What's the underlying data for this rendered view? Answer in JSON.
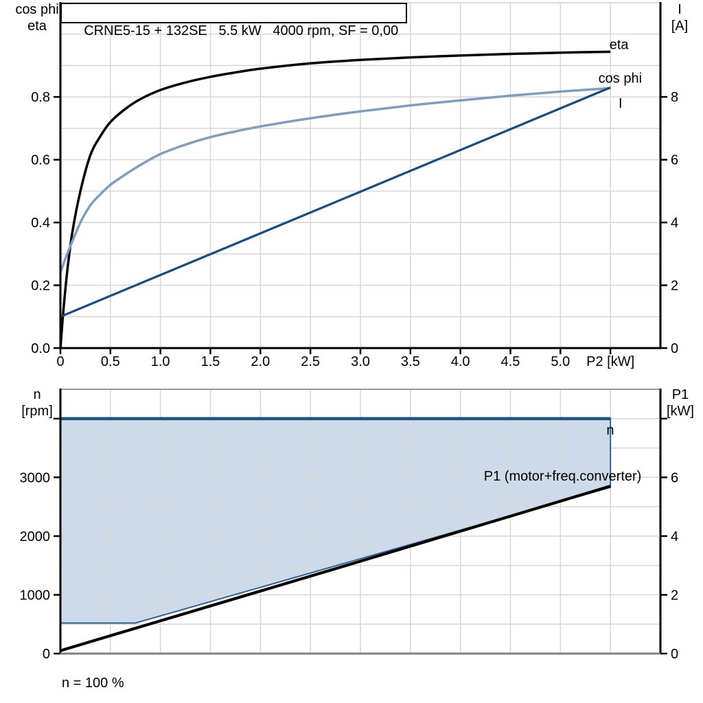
{
  "title_box": {
    "text": "CRNE5-15 + 132SE   5.5 kW   4000 rpm, SF = 0,00"
  },
  "labels": {
    "top_left": {
      "line1": "cos phi",
      "line2": "eta"
    },
    "top_right": {
      "line1": "I",
      "line2": "[A]"
    },
    "bottom_left": {
      "line1": "n",
      "line2": "[rpm]"
    },
    "bottom_right": {
      "line1": "P1",
      "line2": "[kW]"
    },
    "footer_note": "n = 100 %"
  },
  "colors": {
    "grid": "#d9d9d9",
    "axis": "#000000",
    "bottom_chart_top_border": "#9a9a9a",
    "bottom_chart_bottom_axis": "#808080",
    "eta": "#000000",
    "cos_phi": "#7e9dbf",
    "current": "#1b4e80",
    "speed_line": "#1f5480",
    "envelope_fill": "#ccdae9",
    "envelope_stroke": "#2e618f",
    "p1_line": "#000000"
  },
  "chart_data": [
    {
      "type": "line",
      "title": "CRNE5-15 + 132SE   5.5 kW   4000 rpm, SF = 0,00",
      "xlabel": "P2 [kW]",
      "grid": true,
      "x": {
        "min": 0,
        "max": 6,
        "grid_step": 0.5,
        "ticks": [
          {
            "v": 0,
            "label": "0"
          },
          {
            "v": 0.5,
            "label": "0.5"
          },
          {
            "v": 1,
            "label": "1.0"
          },
          {
            "v": 1.5,
            "label": "1.5"
          },
          {
            "v": 2,
            "label": "2.0"
          },
          {
            "v": 2.5,
            "label": "2.5"
          },
          {
            "v": 3,
            "label": "3.0"
          },
          {
            "v": 3.5,
            "label": "3.5"
          },
          {
            "v": 4,
            "label": "4.0"
          },
          {
            "v": 4.5,
            "label": "4.5"
          },
          {
            "v": 5,
            "label": "5.0"
          },
          {
            "v": 5.5,
            "label": "P2 [kW]"
          }
        ]
      },
      "left_axis": {
        "name": "cos phi / eta",
        "min": 0,
        "max": 1.1,
        "grid_step": 0.1,
        "ticks": [
          {
            "v": 0,
            "label": "0.0"
          },
          {
            "v": 0.2,
            "label": "0.2"
          },
          {
            "v": 0.4,
            "label": "0.4"
          },
          {
            "v": 0.6,
            "label": "0.6"
          },
          {
            "v": 0.8,
            "label": "0.8"
          }
        ]
      },
      "right_axis": {
        "name": "I [A]",
        "min": 0,
        "max": 11,
        "ticks": [
          {
            "v": 0,
            "label": "0"
          },
          {
            "v": 2,
            "label": "2"
          },
          {
            "v": 4,
            "label": "4"
          },
          {
            "v": 6,
            "label": "6"
          },
          {
            "v": 8,
            "label": "8"
          }
        ]
      },
      "series": [
        {
          "name": "eta",
          "axis": "left",
          "color_key": "eta",
          "width": 3.5,
          "smooth": true,
          "points": [
            [
              0,
              0
            ],
            [
              0.03,
              0.12
            ],
            [
              0.07,
              0.25
            ],
            [
              0.12,
              0.37
            ],
            [
              0.2,
              0.5
            ],
            [
              0.3,
              0.615
            ],
            [
              0.4,
              0.675
            ],
            [
              0.5,
              0.72
            ],
            [
              0.65,
              0.762
            ],
            [
              0.8,
              0.793
            ],
            [
              1.0,
              0.822
            ],
            [
              1.25,
              0.846
            ],
            [
              1.5,
              0.864
            ],
            [
              1.75,
              0.878
            ],
            [
              2.0,
              0.89
            ],
            [
              2.5,
              0.907
            ],
            [
              3.0,
              0.918
            ],
            [
              3.5,
              0.926
            ],
            [
              4.0,
              0.932
            ],
            [
              4.5,
              0.937
            ],
            [
              5.0,
              0.941
            ],
            [
              5.5,
              0.944
            ]
          ]
        },
        {
          "name": "cos phi",
          "axis": "left",
          "color_key": "cos_phi",
          "width": 3.5,
          "smooth": true,
          "points": [
            [
              0,
              0.24
            ],
            [
              0.05,
              0.285
            ],
            [
              0.1,
              0.325
            ],
            [
              0.2,
              0.4
            ],
            [
              0.3,
              0.455
            ],
            [
              0.4,
              0.49
            ],
            [
              0.5,
              0.52
            ],
            [
              0.65,
              0.553
            ],
            [
              0.8,
              0.583
            ],
            [
              1.0,
              0.618
            ],
            [
              1.25,
              0.648
            ],
            [
              1.5,
              0.672
            ],
            [
              1.75,
              0.69
            ],
            [
              2.0,
              0.706
            ],
            [
              2.5,
              0.732
            ],
            [
              3.0,
              0.754
            ],
            [
              3.5,
              0.773
            ],
            [
              4.0,
              0.789
            ],
            [
              4.5,
              0.804
            ],
            [
              5.0,
              0.817
            ],
            [
              5.5,
              0.828
            ]
          ]
        },
        {
          "name": "I",
          "axis": "right",
          "color_key": "current",
          "width": 3.3,
          "smooth": false,
          "points": [
            [
              0,
              1.0
            ],
            [
              5.5,
              8.3
            ]
          ]
        }
      ],
      "annotations": [
        {
          "text": "eta",
          "x": 5.49,
          "v": 0.952,
          "axis": "left",
          "anchor": "start",
          "color_key": "eta"
        },
        {
          "text": "cos phi",
          "x": 5.38,
          "v": 0.845,
          "axis": "left",
          "anchor": "start",
          "color_key": "cos_phi"
        },
        {
          "text": "I",
          "x": 5.6,
          "v": 7.65,
          "axis": "right",
          "anchor": "middle",
          "color_key": "current"
        }
      ]
    },
    {
      "type": "area+line",
      "title": "speed range and input power",
      "footer": "n = 100 %",
      "grid": true,
      "x": {
        "min": 0,
        "max": 6,
        "grid_step": 0.5,
        "ticks": []
      },
      "left_axis": {
        "name": "n [rpm]",
        "min": 0,
        "max": 4500,
        "grid_step": 500,
        "ticks": [
          {
            "v": 0,
            "label": "0"
          },
          {
            "v": 1000,
            "label": "1000"
          },
          {
            "v": 2000,
            "label": "2000"
          },
          {
            "v": 3000,
            "label": "3000"
          },
          {
            "v": 4000,
            "label": ""
          }
        ]
      },
      "right_axis": {
        "name": "P1 [kW]",
        "min": 0,
        "max": 9,
        "ticks": [
          {
            "v": 0,
            "label": "0"
          },
          {
            "v": 2,
            "label": "2"
          },
          {
            "v": 4,
            "label": "4"
          },
          {
            "v": 6,
            "label": "6"
          },
          {
            "v": 8,
            "label": ""
          }
        ]
      },
      "envelope": {
        "axis": "left",
        "fill_color_key": "envelope_fill",
        "stroke_color_key": "envelope_stroke",
        "polygon": [
          [
            0,
            4000
          ],
          [
            5.5,
            4000
          ],
          [
            5.5,
            2830
          ],
          [
            0.75,
            520
          ],
          [
            0,
            520
          ]
        ]
      },
      "series": [
        {
          "name": "P1 (motor+freq.converter)",
          "axis": "right",
          "color_key": "p1_line",
          "width": 4.2,
          "smooth": false,
          "points": [
            [
              0,
              0.1
            ],
            [
              2.75,
              2.89
            ],
            [
              5.5,
              5.7
            ]
          ]
        },
        {
          "name": "n",
          "axis": "left",
          "color_key": "speed_line",
          "width": 4.6,
          "smooth": false,
          "points": [
            [
              0,
              4000
            ],
            [
              5.5,
              4000
            ]
          ]
        }
      ],
      "annotations": [
        {
          "text": "n",
          "x": 5.46,
          "v": 3730,
          "axis": "left",
          "anchor": "start",
          "color_key": "speed_line"
        },
        {
          "text": "P1 (motor+freq.converter)",
          "x": 5.81,
          "v": 5.89,
          "axis": "right",
          "anchor": "end",
          "color_key": "p1_line"
        }
      ]
    }
  ]
}
